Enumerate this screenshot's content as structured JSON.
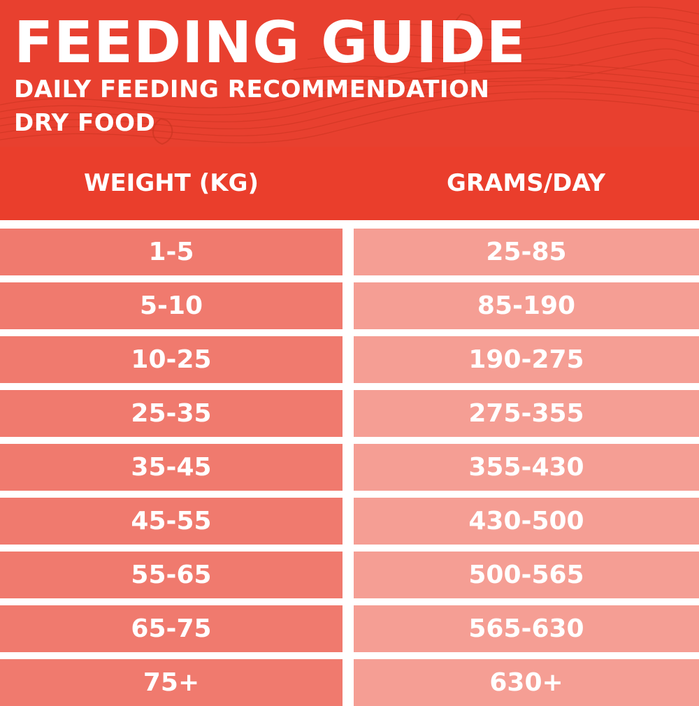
{
  "header": {
    "title": "FEEDING GUIDE",
    "subtitle_line1": "DAILY FEEDING RECOMMENDATION",
    "subtitle_line2": "DRY FOOD",
    "background_color": "#e8402f"
  },
  "table": {
    "columns": [
      "WEIGHT (KG)",
      "GRAMS/DAY"
    ],
    "rows": [
      [
        "1-5",
        "25-85"
      ],
      [
        "5-10",
        "85-190"
      ],
      [
        "10-25",
        "190-275"
      ],
      [
        "25-35",
        "275-355"
      ],
      [
        "35-45",
        "355-430"
      ],
      [
        "45-55",
        "430-500"
      ],
      [
        "55-65",
        "500-565"
      ],
      [
        "65-75",
        "565-630"
      ],
      [
        "75+",
        "630+"
      ]
    ],
    "left_cell_color": "#f07a6e",
    "right_cell_color": "#f59e94"
  }
}
